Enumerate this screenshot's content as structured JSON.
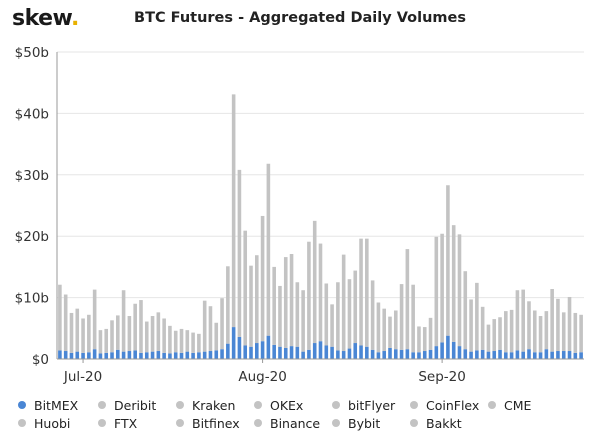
{
  "brand": {
    "name": "skew",
    "dot": "."
  },
  "chart_data": {
    "type": "bar",
    "stacked": true,
    "title": "BTC Futures - Aggregated Daily Volumes",
    "xlabel": "",
    "ylabel": "",
    "ylim": [
      0,
      50
    ],
    "yticks": [
      "$0",
      "$10b",
      "$20b",
      "$30b",
      "$40b",
      "$50b"
    ],
    "xticks": [
      {
        "label": "Jul-20",
        "index": 4
      },
      {
        "label": "Aug-20",
        "index": 35
      },
      {
        "label": "Sep-20",
        "index": 66
      }
    ],
    "grid": "horizontal",
    "legend_position": "bottom",
    "colors": {
      "bitmex": "#4a86d4",
      "others": "#c3c3c3",
      "axis": "#999999"
    },
    "legend": [
      {
        "name": "BitMEX",
        "color": "#4a86d4"
      },
      {
        "name": "Deribit",
        "color": "#c3c3c3"
      },
      {
        "name": "Kraken",
        "color": "#c3c3c3"
      },
      {
        "name": "OKEx",
        "color": "#c3c3c3"
      },
      {
        "name": "bitFlyer",
        "color": "#c3c3c3"
      },
      {
        "name": "CoinFlex",
        "color": "#c3c3c3"
      },
      {
        "name": "CME",
        "color": "#c3c3c3"
      },
      {
        "name": "Huobi",
        "color": "#c3c3c3"
      },
      {
        "name": "FTX",
        "color": "#c3c3c3"
      },
      {
        "name": "Bitfinex",
        "color": "#c3c3c3"
      },
      {
        "name": "Binance",
        "color": "#c3c3c3"
      },
      {
        "name": "Bybit",
        "color": "#c3c3c3"
      },
      {
        "name": "Bakkt",
        "color": "#c3c3c3"
      }
    ],
    "series": [
      {
        "name": "BitMEX",
        "values": [
          1.4,
          1.3,
          1.0,
          1.2,
          1.0,
          1.1,
          1.6,
          0.9,
          1.0,
          1.1,
          1.5,
          1.2,
          1.3,
          1.4,
          1.0,
          1.1,
          1.2,
          1.3,
          1.0,
          0.9,
          1.1,
          1.0,
          1.2,
          1.0,
          1.1,
          1.2,
          1.3,
          1.4,
          1.6,
          2.5,
          5.2,
          3.6,
          2.2,
          2.0,
          2.6,
          2.9,
          3.8,
          2.3,
          2.0,
          1.8,
          2.1,
          2.0,
          1.2,
          1.5,
          2.6,
          2.9,
          2.2,
          2.0,
          1.4,
          1.3,
          1.7,
          2.6,
          2.2,
          2.0,
          1.5,
          1.1,
          1.3,
          1.8,
          1.6,
          1.5,
          1.6,
          1.1,
          1.1,
          1.3,
          1.5,
          2.1,
          2.7,
          3.8,
          2.8,
          2.1,
          1.6,
          1.2,
          1.4,
          1.5,
          1.2,
          1.3,
          1.5,
          1.1,
          1.1,
          1.4,
          1.2,
          1.6,
          1.1,
          1.1,
          1.6,
          1.2,
          1.3,
          1.3,
          1.3,
          1.0,
          1.1
        ]
      },
      {
        "name": "Other exchanges (Deribit, Kraken, OKEx, bitFlyer, CoinFlex, CME, Huobi, FTX, Bitfinex, Binance, Bybit, Bakkt)",
        "values": [
          10.7,
          9.2,
          6.5,
          7.0,
          5.6,
          6.1,
          9.7,
          3.8,
          3.9,
          5.2,
          5.6,
          10.0,
          5.7,
          7.6,
          8.6,
          5.0,
          5.8,
          6.3,
          5.6,
          4.5,
          3.5,
          3.9,
          3.5,
          3.3,
          3.0,
          8.3,
          7.3,
          4.5,
          8.3,
          12.6,
          37.9,
          27.2,
          18.7,
          13.2,
          14.3,
          20.4,
          28.0,
          12.7,
          9.9,
          14.8,
          15.0,
          10.5,
          10.0,
          17.6,
          19.9,
          15.9,
          10.1,
          6.9,
          11.1,
          15.7,
          11.3,
          11.8,
          17.4,
          17.6,
          11.3,
          8.1,
          6.9,
          5.1,
          6.3,
          10.7,
          16.3,
          11.0,
          4.2,
          3.9,
          5.2,
          17.8,
          17.7,
          24.5,
          19.0,
          18.2,
          12.7,
          8.5,
          11.0,
          7.0,
          4.4,
          5.2,
          5.3,
          6.7,
          6.9,
          9.8,
          10.1,
          7.8,
          6.8,
          5.9,
          6.2,
          10.2,
          8.5,
          6.3,
          8.8,
          6.5,
          6.1
        ]
      }
    ]
  },
  "legend_rows": [
    [
      "BitMEX",
      "Deribit",
      "Kraken",
      "OKEx",
      "bitFlyer",
      "CoinFlex",
      "CME"
    ],
    [
      "Huobi",
      "FTX",
      "Bitfinex",
      "Binance",
      "Bybit",
      "Bakkt"
    ]
  ]
}
